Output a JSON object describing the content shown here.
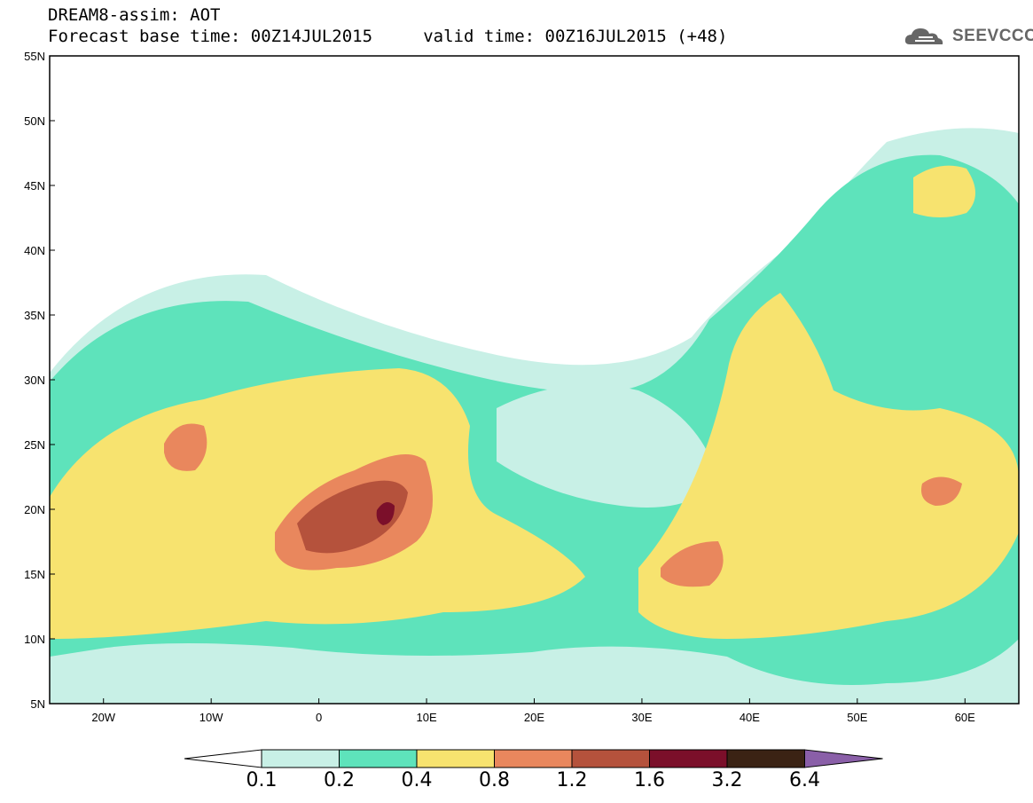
{
  "title": {
    "line1": "DREAM8-assim: AOT",
    "line2": "Forecast base time: 00Z14JUL2015     valid time: 00Z16JUL2015 (+48)"
  },
  "logo": {
    "text": "SEEVCCC",
    "icon": "cloud-icon"
  },
  "map": {
    "lon_range": [
      -25,
      65
    ],
    "lat_range": [
      5,
      55
    ],
    "lat_ticks": [
      "55N",
      "50N",
      "45N",
      "40N",
      "35N",
      "30N",
      "25N",
      "20N",
      "15N",
      "10N",
      "5N"
    ],
    "lon_ticks": [
      "20W",
      "10W",
      "0",
      "10E",
      "20E",
      "30E",
      "40E",
      "50E",
      "60E"
    ]
  },
  "colorbar": {
    "colors": [
      "#ffffff",
      "#c8f0e6",
      "#5ee3bb",
      "#f7e36f",
      "#e9875d",
      "#b5523c",
      "#7b0f2a",
      "#3b2314",
      "#8a5fa8"
    ],
    "labels": [
      "0.1",
      "0.2",
      "0.4",
      "0.8",
      "1.2",
      "1.6",
      "3.2",
      "6.4"
    ]
  }
}
